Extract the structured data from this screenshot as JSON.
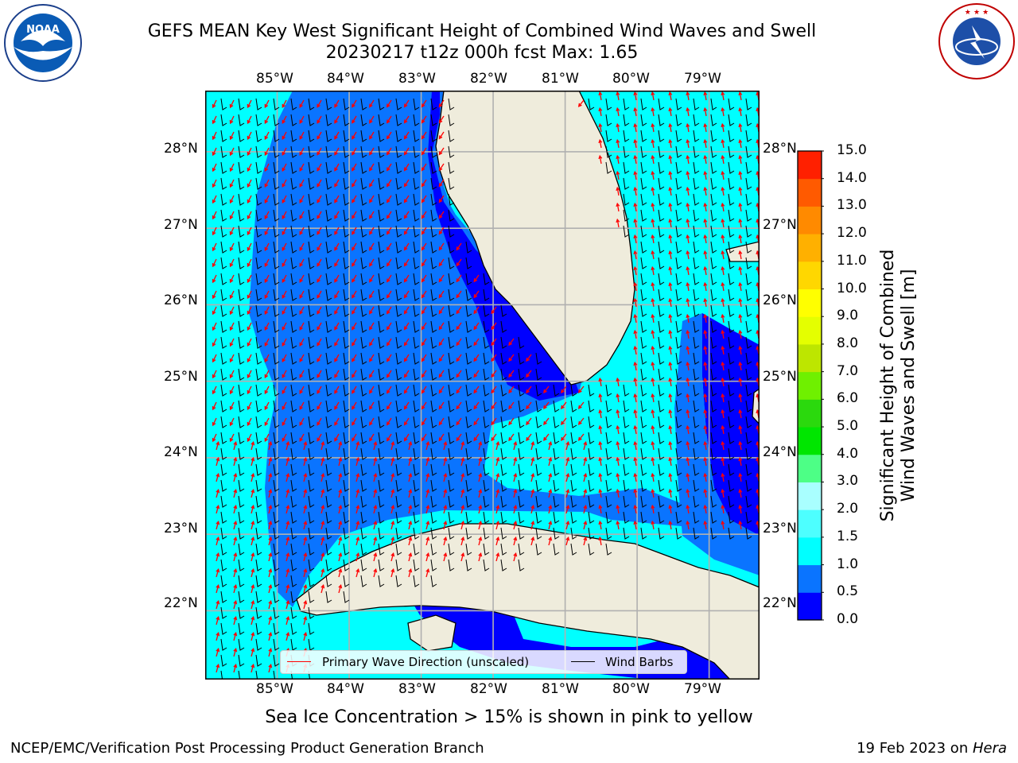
{
  "title": {
    "line1": "GEFS MEAN Key West Significant Height of Combined Wind Waves and Swell",
    "line2": "20230217 t12z 000h fcst   Max: 1.65"
  },
  "logos": {
    "left": {
      "name": "noaa-logo",
      "text": "NOAA",
      "ring_text": "NATIONAL OCEANIC AND ATMOSPHERIC ADMINISTRATION · U.S. DEPARTMENT OF COMMERCE"
    },
    "right": {
      "name": "nws-logo",
      "ring_text": "NATIONAL WEATHER SERVICE"
    }
  },
  "map": {
    "lon_labels": [
      "85°W",
      "84°W",
      "83°W",
      "82°W",
      "81°W",
      "80°W",
      "79°W"
    ],
    "lat_labels": [
      "28°N",
      "27°N",
      "26°N",
      "25°N",
      "24°N",
      "23°N",
      "22°N"
    ],
    "lon_range": [
      -86.0,
      -78.3
    ],
    "lat_range": [
      21.1,
      28.8
    ],
    "land_color": "#efecdc",
    "grid_color": "#b0b0b0"
  },
  "legend": {
    "wave": {
      "label": "Primary Wave Direction (unscaled)",
      "color": "#ff0000"
    },
    "wind": {
      "label": "Wind Barbs",
      "color": "#000000"
    }
  },
  "colorbar": {
    "label_line1": "Significant Height of Combined",
    "label_line2": "Wind Waves and Swell [m]",
    "ticks": [
      "15.0",
      "14.0",
      "13.0",
      "12.0",
      "11.0",
      "10.0",
      "9.0",
      "8.0",
      "7.0",
      "6.0",
      "5.0",
      "4.0",
      "3.0",
      "2.0",
      "1.5",
      "1.0",
      "0.5",
      "0.0"
    ],
    "colors_bottom_to_top": [
      "#0000ff",
      "#0a74ff",
      "#00ffff",
      "#4dffff",
      "#a9ffff",
      "#4dff86",
      "#00e600",
      "#2bd90d",
      "#6ff000",
      "#bde600",
      "#e4ff00",
      "#ffff00",
      "#ffd700",
      "#ffb000",
      "#ff8a00",
      "#ff5a00",
      "#ff2000"
    ]
  },
  "subnote": "Sea Ice Concentration > 15% is shown in pink to yellow",
  "footer": {
    "left": "NCEP/EMC/Verification Post Processing Product Generation Branch",
    "right_prefix": "19 Feb 2023 on ",
    "right_italic": "Hera"
  }
}
